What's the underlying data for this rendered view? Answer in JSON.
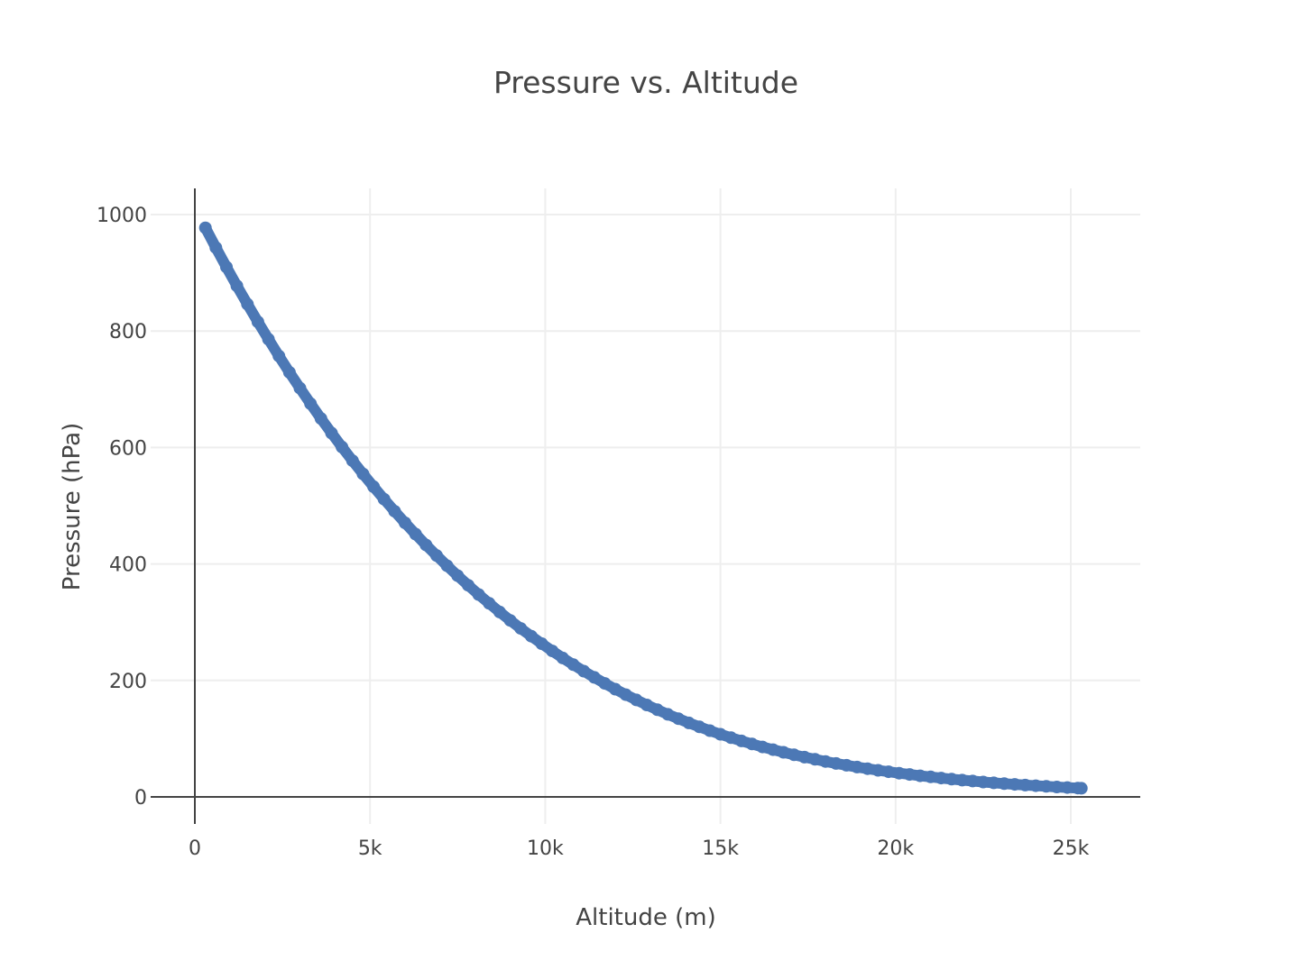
{
  "chart_data": {
    "type": "scatter",
    "title": "Pressure vs. Altitude",
    "xlabel": "Altitude (m)",
    "ylabel": "Pressure (hPa)",
    "xlim": [
      0,
      27000
    ],
    "ylim": [
      -40,
      1045
    ],
    "xticks": [
      0,
      5000,
      10000,
      15000,
      20000,
      25000
    ],
    "xtick_labels": [
      "0",
      "5k",
      "10k",
      "15k",
      "20k",
      "25k"
    ],
    "yticks": [
      0,
      200,
      400,
      600,
      800,
      1000
    ],
    "ytick_labels": [
      "0",
      "200",
      "400",
      "600",
      "800",
      "1000"
    ],
    "grid": true,
    "marker_color": "#4c78b5",
    "series": [
      {
        "x": [
          300,
          600,
          900,
          1200,
          1500,
          1800,
          2100,
          2400,
          2700,
          3000,
          3300,
          3600,
          3900,
          4200,
          4500,
          4800,
          5100,
          5400,
          5700,
          6000,
          6300,
          6600,
          6900,
          7200,
          7500,
          7800,
          8100,
          8400,
          8700,
          9000,
          9300,
          9600,
          9900,
          10200,
          10500,
          10800,
          11100,
          11400,
          11700,
          12000,
          12300,
          12600,
          12900,
          13200,
          13500,
          13800,
          14100,
          14400,
          14700,
          15000,
          15300,
          15600,
          15900,
          16200,
          16500,
          16800,
          17100,
          17400,
          17700,
          18000,
          18300,
          18600,
          18900,
          19200,
          19500,
          19800,
          20100,
          20400,
          20700,
          21000,
          21300,
          21600,
          21900,
          22200,
          22500,
          22800,
          23100,
          23400,
          23700,
          24000,
          24300,
          24600,
          24900,
          25200,
          25300
        ],
        "y": [
          977.3,
          943.2,
          909.9,
          877.6,
          846.2,
          815.6,
          785.9,
          757.1,
          729.0,
          701.8,
          675.3,
          649.7,
          624.8,
          600.7,
          577.3,
          554.6,
          532.6,
          511.3,
          490.6,
          470.6,
          451.3,
          432.5,
          414.4,
          396.9,
          379.9,
          363.5,
          347.6,
          332.3,
          317.5,
          303.1,
          289.3,
          276.0,
          263.1,
          250.6,
          238.6,
          227.1,
          215.9,
          205.2,
          194.9,
          185.0,
          175.5,
          166.5,
          157.9,
          149.7,
          141.8,
          134.3,
          127.1,
          120.3,
          113.8,
          107.6,
          101.7,
          96.1,
          90.8,
          85.8,
          81.1,
          76.6,
          72.3,
          68.3,
          64.5,
          60.9,
          57.5,
          54.3,
          51.3,
          48.4,
          45.7,
          43.2,
          40.7,
          38.5,
          36.3,
          34.3,
          32.4,
          30.5,
          28.8,
          27.2,
          25.6,
          24.2,
          22.8,
          21.5,
          20.3,
          19.2,
          18.1,
          17.1,
          16.1,
          15.2,
          14.9
        ]
      }
    ]
  }
}
